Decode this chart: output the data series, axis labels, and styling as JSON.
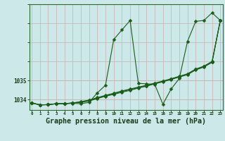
{
  "bg_color": "#cce8e8",
  "grid_color_v": "#c8b0b0",
  "grid_color_h": "#c8b0b0",
  "line_color": "#1a5c1a",
  "title": "Graphe pression niveau de la mer (hPa)",
  "yticks": [
    1034,
    1035
  ],
  "ylim": [
    1033.45,
    1039.0
  ],
  "xlim": [
    -0.3,
    23.3
  ],
  "series1_x": [
    0,
    1,
    2,
    3,
    4,
    5,
    6,
    7,
    8,
    9,
    10,
    11,
    12,
    13,
    14,
    15,
    16,
    17,
    18,
    19,
    20,
    21,
    22,
    23
  ],
  "series1_y": [
    1033.82,
    1033.72,
    1033.73,
    1033.78,
    1033.78,
    1033.8,
    1033.78,
    1033.85,
    1034.35,
    1034.75,
    1037.15,
    1037.65,
    1038.15,
    1034.85,
    1034.82,
    1034.8,
    1033.75,
    1034.55,
    1035.1,
    1037.05,
    1038.1,
    1038.15,
    1038.55,
    1038.15
  ],
  "series2_x": [
    0,
    1,
    2,
    3,
    4,
    5,
    6,
    7,
    8,
    9,
    10,
    11,
    12,
    13,
    14,
    15,
    16,
    17,
    18,
    19,
    20,
    21,
    22,
    23
  ],
  "series2_y": [
    1033.82,
    1033.72,
    1033.73,
    1033.78,
    1033.78,
    1033.82,
    1033.85,
    1033.92,
    1034.05,
    1034.17,
    1034.27,
    1034.38,
    1034.48,
    1034.6,
    1034.7,
    1034.82,
    1034.93,
    1035.05,
    1035.18,
    1035.3,
    1035.55,
    1035.7,
    1035.95,
    1038.15
  ],
  "series3_x": [
    0,
    1,
    2,
    3,
    4,
    5,
    6,
    7,
    8,
    9,
    10,
    11,
    12,
    13,
    14,
    15,
    16,
    17,
    18,
    19,
    20,
    21,
    22,
    23
  ],
  "series3_y": [
    1033.82,
    1033.72,
    1033.73,
    1033.78,
    1033.78,
    1033.82,
    1033.87,
    1033.95,
    1034.07,
    1034.2,
    1034.3,
    1034.42,
    1034.52,
    1034.62,
    1034.72,
    1034.83,
    1034.95,
    1035.07,
    1035.2,
    1035.33,
    1035.58,
    1035.73,
    1035.98,
    1038.15
  ],
  "series4_x": [
    0,
    1,
    2,
    3,
    4,
    5,
    6,
    7,
    8,
    9,
    10,
    11,
    12,
    13,
    14,
    15,
    16,
    17,
    18,
    19,
    20,
    21,
    22,
    23
  ],
  "series4_y": [
    1033.82,
    1033.72,
    1033.73,
    1033.78,
    1033.78,
    1033.82,
    1033.89,
    1033.97,
    1034.1,
    1034.22,
    1034.33,
    1034.45,
    1034.55,
    1034.65,
    1034.75,
    1034.86,
    1034.97,
    1035.09,
    1035.22,
    1035.35,
    1035.6,
    1035.75,
    1036.0,
    1038.15
  ]
}
